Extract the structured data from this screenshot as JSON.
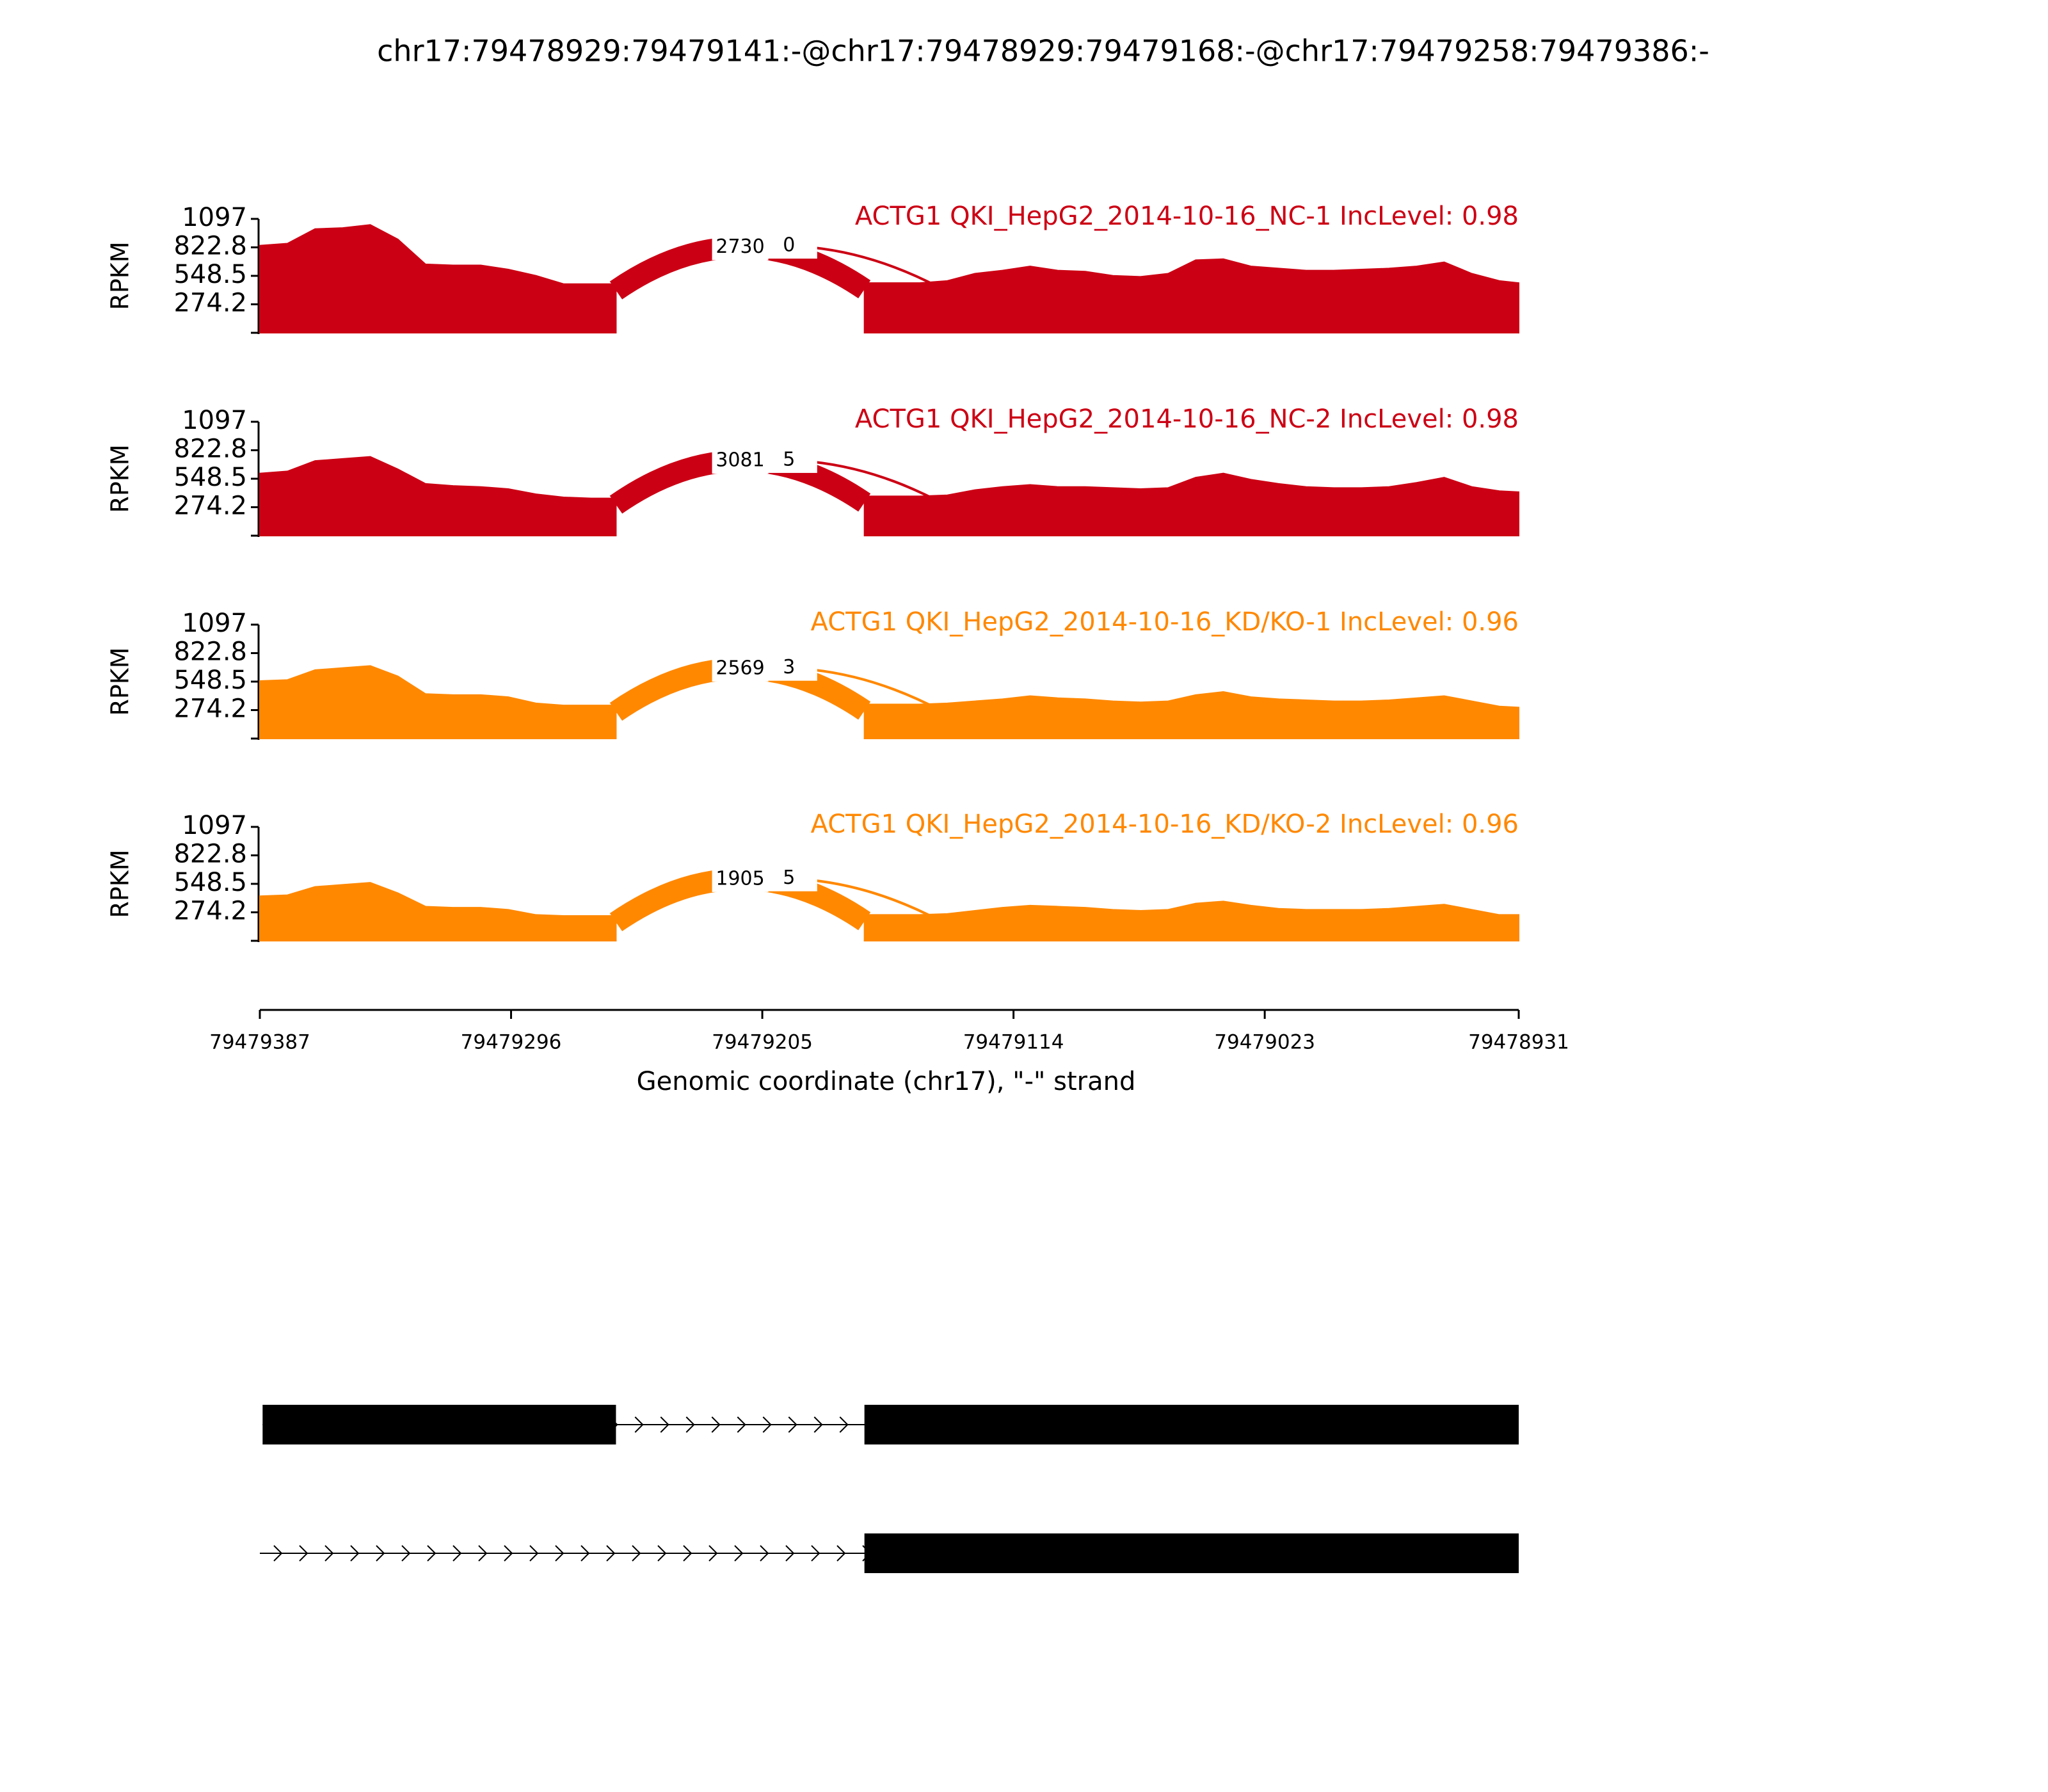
{
  "chart_data": {
    "type": "sashimi",
    "title": "chr17:79478929:79479141:-@chr17:79478929:79479168:-@chr17:79479258:79479386:-",
    "xlabel": "Genomic coordinate (chr17), \"-\" strand",
    "ylabel": "RPKM",
    "xlim": [
      79479387,
      79478931
    ],
    "xticks": [
      79479387,
      79479296,
      79479205,
      79479114,
      79479023,
      79478931
    ],
    "ylim": [
      0,
      1097
    ],
    "yticks": [
      274.2,
      548.5,
      822.8,
      1097
    ],
    "x": [
      79479387,
      79479377,
      79479367,
      79479357,
      79479347,
      79479337,
      79479327,
      79479317,
      79479307,
      79479297,
      79479287,
      79479277,
      79479267,
      79479258,
      79479213,
      79479168,
      79479158,
      79479148,
      79479138,
      79479128,
      79479118,
      79479108,
      79479098,
      79479088,
      79479078,
      79479068,
      79479058,
      79479048,
      79479038,
      79479028,
      79479018,
      79479008,
      79478998,
      79478988,
      79478978,
      79478968,
      79478958,
      79478948,
      79478938,
      79478931
    ],
    "series": [
      {
        "name": "ACTG1 QKI_HepG2_2014-10-16_NC-1 IncLevel: 0.98",
        "color": "#cc0014",
        "values": [
          840,
          860,
          1000,
          1010,
          1040,
          900,
          660,
          650,
          650,
          610,
          550,
          470,
          470,
          470,
          null,
          480,
          480,
          480,
          500,
          570,
          600,
          640,
          600,
          590,
          550,
          540,
          570,
          700,
          710,
          640,
          620,
          600,
          600,
          610,
          620,
          640,
          680,
          570,
          500,
          480
        ],
        "junctions": [
          {
            "start": 79479258,
            "end": 79479168,
            "count": 2730
          },
          {
            "start": 79479258,
            "end": 79479141,
            "count": 0
          }
        ]
      },
      {
        "name": "ACTG1 QKI_HepG2_2014-10-16_NC-2 IncLevel: 0.98",
        "color": "#cc0014",
        "values": [
          600,
          620,
          720,
          740,
          760,
          640,
          500,
          480,
          470,
          450,
          400,
          370,
          360,
          360,
          null,
          380,
          380,
          380,
          390,
          440,
          470,
          490,
          470,
          470,
          460,
          450,
          460,
          560,
          600,
          540,
          500,
          470,
          460,
          460,
          470,
          510,
          560,
          470,
          430,
          420
        ],
        "junctions": [
          {
            "start": 79479258,
            "end": 79479168,
            "count": 3081
          },
          {
            "start": 79479258,
            "end": 79479141,
            "count": 5
          }
        ]
      },
      {
        "name": "ACTG1 QKI_HepG2_2014-10-16_KD/KO-1 IncLevel: 0.96",
        "color": "#ff8800",
        "values": [
          555,
          565,
          660,
          680,
          700,
          600,
          430,
          420,
          420,
          400,
          340,
          320,
          320,
          320,
          null,
          330,
          330,
          330,
          340,
          360,
          380,
          410,
          390,
          380,
          360,
          350,
          360,
          420,
          450,
          400,
          380,
          370,
          360,
          360,
          370,
          390,
          410,
          360,
          310,
          300
        ],
        "junctions": [
          {
            "start": 79479258,
            "end": 79479168,
            "count": 2569
          },
          {
            "start": 79479258,
            "end": 79479141,
            "count": 3
          }
        ]
      },
      {
        "name": "ACTG1 QKI_HepG2_2014-10-16_KD/KO-2 IncLevel: 0.96",
        "color": "#ff8800",
        "values": [
          430,
          440,
          520,
          540,
          560,
          460,
          330,
          320,
          320,
          300,
          250,
          240,
          240,
          240,
          null,
          250,
          250,
          250,
          260,
          290,
          320,
          340,
          330,
          320,
          300,
          290,
          300,
          360,
          380,
          340,
          310,
          300,
          300,
          300,
          310,
          330,
          350,
          300,
          250,
          250
        ],
        "junctions": [
          {
            "start": 79479258,
            "end": 79479168,
            "count": 1905
          },
          {
            "start": 79479258,
            "end": 79479141,
            "count": 5
          }
        ]
      }
    ],
    "transcripts": [
      {
        "start": 79479386,
        "end": 79478931,
        "exons": [
          [
            79479386,
            79479258
          ],
          [
            79479168,
            79478931
          ]
        ]
      },
      {
        "start": 79479387,
        "end": 79478931,
        "exons": [
          [
            79479168,
            79478931
          ]
        ]
      }
    ]
  }
}
